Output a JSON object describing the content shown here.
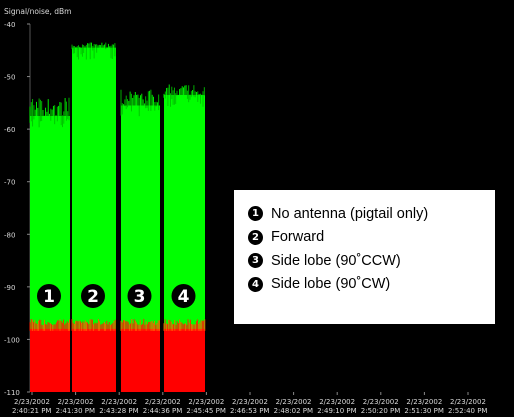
{
  "chart_data": {
    "type": "bar",
    "ylabel": "Signal/noise, dBm",
    "ylim": [
      -110,
      -40
    ],
    "yticks": [
      "-40",
      "-50",
      "-60",
      "-70",
      "-80",
      "-90",
      "-100",
      "-110"
    ],
    "xticks": [
      {
        "date": "2/23/2002",
        "time": "2:40:21 PM"
      },
      {
        "date": "2/23/2002",
        "time": "2:41:30 PM"
      },
      {
        "date": "2/23/2002",
        "time": "2:43:28 PM"
      },
      {
        "date": "2/23/2002",
        "time": "2:44:36 PM"
      },
      {
        "date": "2/23/2002",
        "time": "2:45:45 PM"
      },
      {
        "date": "2/23/2002",
        "time": "2:46:53 PM"
      },
      {
        "date": "2/23/2002",
        "time": "2:48:02 PM"
      },
      {
        "date": "2/23/2002",
        "time": "2:49:10 PM"
      },
      {
        "date": "2/23/2002",
        "time": "2:50:20 PM"
      },
      {
        "date": "2/23/2002",
        "time": "2:51:30 PM"
      },
      {
        "date": "2/23/2002",
        "time": "2:52:40 PM"
      }
    ],
    "series": [
      {
        "name": "Signal",
        "color": "#00ff00"
      },
      {
        "name": "Noise",
        "color": "#ff0000"
      }
    ],
    "groups": [
      {
        "marker": "1",
        "signal": -57.5,
        "signal_peak": -54,
        "noise": -98
      },
      {
        "marker": "2",
        "signal": -44.5,
        "signal_peak": -43.5,
        "noise": -98
      },
      {
        "marker": "3",
        "signal": -55.5,
        "signal_peak": -52.5,
        "noise": -98
      },
      {
        "marker": "4",
        "signal": -53.5,
        "signal_peak": -51.5,
        "noise": -98
      }
    ],
    "legend": [
      {
        "marker": "1",
        "label": "No antenna (pigtail only)"
      },
      {
        "marker": "2",
        "label": "Forward"
      },
      {
        "marker": "3",
        "label": "Side lobe (90˚CCW)"
      },
      {
        "marker": "4",
        "label": "Side lobe (90˚CW)"
      }
    ]
  }
}
